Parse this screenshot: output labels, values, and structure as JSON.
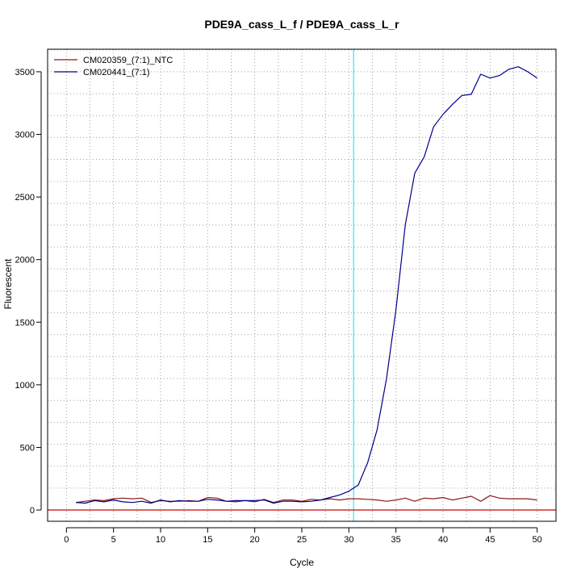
{
  "chart_data": {
    "type": "line",
    "title": "PDE9A_cass_L_f / PDE9A_cass_L_r",
    "xlabel": "Cycle",
    "ylabel": "Fluorescent",
    "xlim": [
      -2,
      52
    ],
    "ylim": [
      -90,
      3680
    ],
    "xticks": [
      "0",
      "5",
      "10",
      "15",
      "20",
      "25",
      "30",
      "35",
      "40",
      "45",
      "50"
    ],
    "yticks": [
      "0",
      "500",
      "1000",
      "1500",
      "2000",
      "2500",
      "3000",
      "3500"
    ],
    "grid": true,
    "legend_position": "top-left",
    "threshold": {
      "y": 0,
      "color": "#cc0000"
    },
    "cycle_marker": {
      "x": 30.5,
      "color": "#00e5ee"
    },
    "x": [
      1,
      2,
      3,
      4,
      5,
      6,
      7,
      8,
      9,
      10,
      11,
      12,
      13,
      14,
      15,
      16,
      17,
      18,
      19,
      20,
      21,
      22,
      23,
      24,
      25,
      26,
      27,
      28,
      29,
      30,
      31,
      32,
      33,
      34,
      35,
      36,
      37,
      38,
      39,
      40,
      41,
      42,
      43,
      44,
      45,
      46,
      47,
      48,
      49,
      50
    ],
    "series": [
      {
        "name": "CM020359_(7:1)_NTC",
        "color": "#8b1a1a",
        "values": [
          60,
          70,
          80,
          75,
          90,
          95,
          90,
          95,
          60,
          75,
          70,
          70,
          75,
          70,
          100,
          95,
          70,
          65,
          75,
          65,
          85,
          60,
          80,
          80,
          70,
          85,
          80,
          90,
          80,
          90,
          90,
          85,
          80,
          70,
          80,
          95,
          70,
          95,
          90,
          100,
          80,
          95,
          110,
          70,
          115,
          95,
          90,
          90,
          90,
          80
        ]
      },
      {
        "name": "CM020441_(7:1)",
        "color": "#00008b",
        "values": [
          60,
          55,
          75,
          65,
          80,
          65,
          60,
          70,
          55,
          80,
          65,
          75,
          70,
          70,
          85,
          80,
          70,
          75,
          75,
          75,
          80,
          55,
          70,
          70,
          65,
          70,
          80,
          100,
          120,
          150,
          200,
          380,
          640,
          1050,
          1600,
          2280,
          2690,
          2820,
          3060,
          3160,
          3240,
          3310,
          3320,
          3480,
          3450,
          3470,
          3520,
          3540,
          3500,
          3450
        ]
      }
    ]
  }
}
